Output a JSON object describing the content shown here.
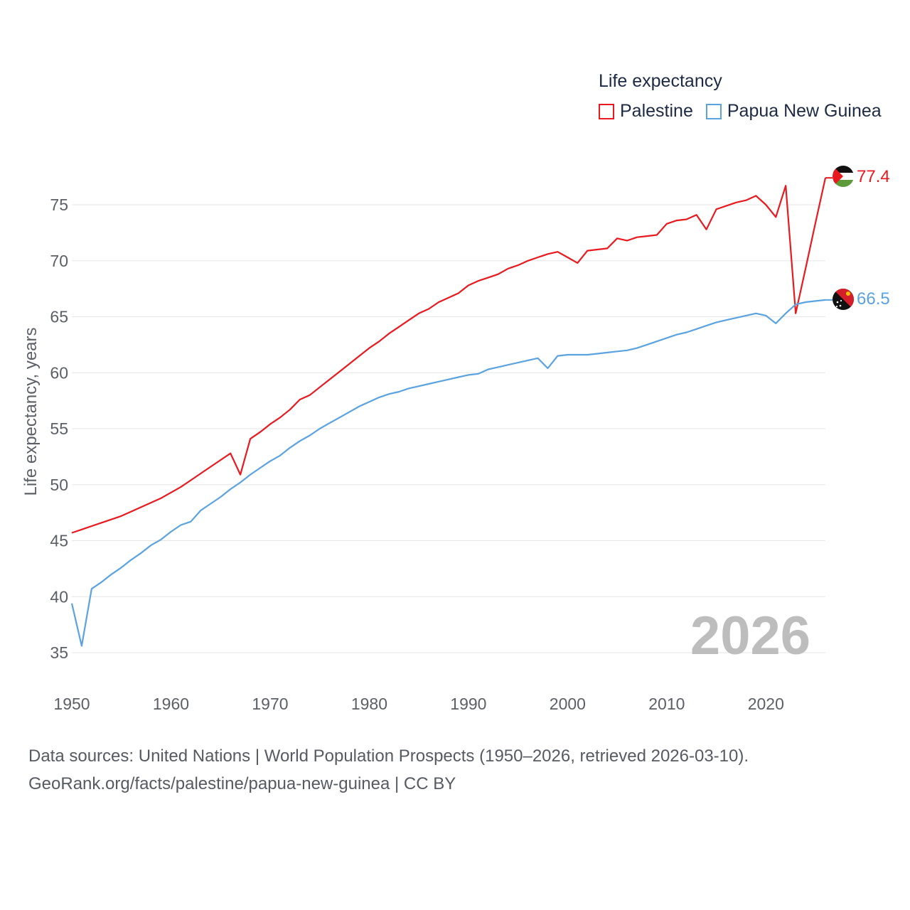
{
  "legend": {
    "title": "Life expectancy",
    "series": [
      {
        "name": "Palestine",
        "color": "#e8191f"
      },
      {
        "name": "Papua New Guinea",
        "color": "#5aa3e0"
      }
    ]
  },
  "current_year": "2026",
  "source": {
    "line1": "Data sources: United Nations | World Population Prospects (1950–2026, retrieved 2026-03-10).",
    "line2": "GeoRank.org/facts/palestine/papua-new-guinea | CC BY"
  },
  "chart_data": {
    "type": "line",
    "title": "Life expectancy",
    "xlabel": "",
    "ylabel": "Life expectancy, years",
    "xlim": [
      1950,
      2026
    ],
    "ylim": [
      33,
      79
    ],
    "x_ticks": [
      1950,
      1960,
      1970,
      1980,
      1990,
      2000,
      2010,
      2020
    ],
    "y_ticks": [
      35,
      40,
      45,
      50,
      55,
      60,
      65,
      70,
      75
    ],
    "x": [
      1950,
      1951,
      1952,
      1953,
      1954,
      1955,
      1956,
      1957,
      1958,
      1959,
      1960,
      1961,
      1962,
      1963,
      1964,
      1965,
      1966,
      1967,
      1968,
      1969,
      1970,
      1971,
      1972,
      1973,
      1974,
      1975,
      1976,
      1977,
      1978,
      1979,
      1980,
      1981,
      1982,
      1983,
      1984,
      1985,
      1986,
      1987,
      1988,
      1989,
      1990,
      1991,
      1992,
      1993,
      1994,
      1995,
      1996,
      1997,
      1998,
      1999,
      2000,
      2001,
      2002,
      2003,
      2004,
      2005,
      2006,
      2007,
      2008,
      2009,
      2010,
      2011,
      2012,
      2013,
      2014,
      2015,
      2016,
      2017,
      2018,
      2019,
      2020,
      2021,
      2022,
      2023,
      2024,
      2025,
      2026
    ],
    "series": [
      {
        "name": "Palestine",
        "color": "#e8191f",
        "end_label": "77.4",
        "values": [
          45.7,
          46.0,
          46.3,
          46.6,
          46.9,
          47.2,
          47.6,
          48.0,
          48.4,
          48.8,
          49.3,
          49.8,
          50.4,
          51.0,
          51.6,
          52.2,
          52.8,
          50.9,
          54.1,
          54.7,
          55.4,
          56.0,
          56.7,
          57.6,
          58.0,
          58.7,
          59.4,
          60.1,
          60.8,
          61.5,
          62.2,
          62.8,
          63.5,
          64.1,
          64.7,
          65.3,
          65.7,
          66.3,
          66.7,
          67.1,
          67.8,
          68.2,
          68.5,
          68.8,
          69.3,
          69.6,
          70.0,
          70.3,
          70.6,
          70.8,
          70.3,
          69.8,
          70.9,
          71.0,
          71.1,
          72.0,
          71.8,
          72.1,
          72.2,
          72.3,
          73.3,
          73.6,
          73.7,
          74.1,
          72.8,
          74.6,
          74.9,
          75.2,
          75.4,
          75.8,
          75.0,
          73.9,
          76.7,
          65.3,
          69.3,
          73.4,
          77.4
        ]
      },
      {
        "name": "Papua New Guinea",
        "color": "#5aa3e0",
        "end_label": "66.5",
        "values": [
          39.4,
          35.6,
          40.7,
          41.3,
          42.0,
          42.6,
          43.3,
          43.9,
          44.6,
          45.1,
          45.8,
          46.4,
          46.7,
          47.7,
          48.3,
          48.9,
          49.6,
          50.2,
          50.9,
          51.5,
          52.1,
          52.6,
          53.3,
          53.9,
          54.4,
          55.0,
          55.5,
          56.0,
          56.5,
          57.0,
          57.4,
          57.8,
          58.1,
          58.3,
          58.6,
          58.8,
          59.0,
          59.2,
          59.4,
          59.6,
          59.8,
          59.9,
          60.3,
          60.5,
          60.7,
          60.9,
          61.1,
          61.3,
          60.4,
          61.5,
          61.6,
          61.6,
          61.6,
          61.7,
          61.8,
          61.9,
          62.0,
          62.2,
          62.5,
          62.8,
          63.1,
          63.4,
          63.6,
          63.9,
          64.2,
          64.5,
          64.7,
          64.9,
          65.1,
          65.3,
          65.1,
          64.4,
          65.3,
          66.1,
          66.3,
          66.4,
          66.5
        ]
      }
    ]
  }
}
